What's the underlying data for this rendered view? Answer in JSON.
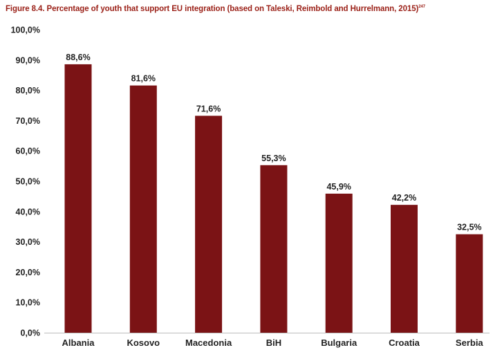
{
  "figure": {
    "title": "Figure 8.4. Percentage of youth that support EU integration (based on Taleski, Reimbold and Hurrelmann, 2015)",
    "footnote_ref": "247"
  },
  "chart_data": {
    "type": "bar",
    "title": "Figure 8.4. Percentage of youth that support EU integration (based on Taleski, Reimbold and Hurrelmann, 2015)",
    "xlabel": "",
    "ylabel": "",
    "categories": [
      "Albania",
      "Kosovo",
      "Macedonia",
      "BiH",
      "Bulgaria",
      "Croatia",
      "Serbia"
    ],
    "values": [
      88.6,
      81.6,
      71.6,
      55.3,
      45.9,
      42.2,
      32.5
    ],
    "data_labels": [
      "88,6%",
      "81,6%",
      "71,6%",
      "55,3%",
      "45,9%",
      "42,2%",
      "32,5%"
    ],
    "ylim": [
      0,
      100
    ],
    "yticks": [
      0,
      10,
      20,
      30,
      40,
      50,
      60,
      70,
      80,
      90,
      100
    ],
    "ytick_labels": [
      "0,0%",
      "10,0%",
      "20,0%",
      "30,0%",
      "40,0%",
      "50,0%",
      "60,0%",
      "70,0%",
      "80,0%",
      "90,0%",
      "100,0%"
    ],
    "grid": false,
    "legend": "none",
    "bar_color": "#7b1315",
    "title_color": "#9a1f16"
  }
}
